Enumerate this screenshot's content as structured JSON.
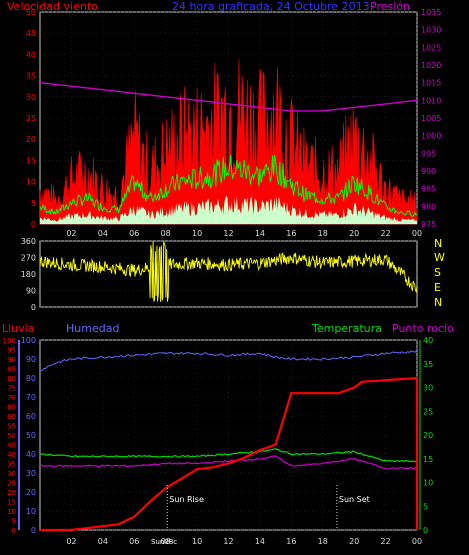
{
  "header": {
    "left_label": "Velocidad viento",
    "center_label": "24 hora graficada, 24 Octubre 2013",
    "right_label": "Presión"
  },
  "bottom_header": {
    "lluvia": "Lluvia",
    "humedad": "Humedad",
    "temperatura": "Temperatura",
    "punto_rocio": "Punto rocío"
  },
  "compass": [
    "N",
    "W",
    "S",
    "E",
    "N"
  ],
  "colors": {
    "background": "#000000",
    "axis": "#aaaaaa",
    "wind_speed": "#ff0000",
    "wind_avg": "#00ff00",
    "wind_low": "#ccffcc",
    "pressure": "#cc00cc",
    "direction": "#ffff00",
    "humidity": "#6666ff",
    "temperature": "#00dd00",
    "dew_point": "#cc00cc",
    "rain": "#ff0000",
    "center_title": "#3333ff"
  },
  "chart_data": [
    {
      "type": "line",
      "id": "wind_pressure",
      "x_tick_labels": [
        "02",
        "04",
        "06",
        "08",
        "10",
        "12",
        "14",
        "16",
        "18",
        "20",
        "22",
        "00"
      ],
      "left_axis": {
        "ticks": [
          0,
          5,
          10,
          15,
          20,
          25,
          30,
          35,
          40,
          45,
          50
        ],
        "ylim": [
          0,
          50
        ]
      },
      "right_axis": {
        "ticks": [
          975,
          980,
          985,
          990,
          995,
          1000,
          1005,
          1010,
          1015,
          1020,
          1025,
          1030,
          1035
        ],
        "ylim": [
          975,
          1035
        ]
      },
      "series": [
        {
          "name": "Velocidad viento",
          "x": [
            0,
            1,
            2,
            3,
            4,
            5,
            6,
            7,
            8,
            9,
            10,
            11,
            12,
            13,
            14,
            15,
            16,
            17,
            18,
            19,
            20,
            21,
            22,
            23,
            24
          ],
          "values": [
            12,
            8,
            15,
            18,
            12,
            10,
            30,
            18,
            25,
            30,
            32,
            35,
            40,
            38,
            34,
            40,
            28,
            20,
            18,
            18,
            30,
            22,
            12,
            8,
            7
          ]
        },
        {
          "name": "Presión",
          "x": [
            0,
            2,
            4,
            6,
            8,
            10,
            12,
            14,
            16,
            18,
            20,
            22,
            24
          ],
          "values": [
            1015,
            1014,
            1013,
            1012,
            1011,
            1010,
            1009,
            1008,
            1007,
            1007,
            1008,
            1009,
            1010
          ]
        }
      ]
    },
    {
      "type": "line",
      "id": "wind_direction",
      "left_axis": {
        "ticks": [
          0,
          90,
          180,
          270,
          360
        ],
        "ylim": [
          0,
          360
        ]
      },
      "series": [
        {
          "name": "Dirección",
          "x": [
            0,
            2,
            4,
            6,
            8,
            10,
            12,
            14,
            16,
            18,
            20,
            22,
            24
          ],
          "values": [
            250,
            230,
            220,
            200,
            230,
            240,
            230,
            240,
            270,
            240,
            250,
            260,
            100
          ]
        }
      ]
    },
    {
      "type": "line",
      "id": "rain_humidity_temp",
      "x_tick_labels": [
        "02",
        "04",
        "06",
        "08",
        "10",
        "12",
        "14",
        "16",
        "18",
        "20",
        "22",
        "00"
      ],
      "annotations": [
        {
          "label": "Sun Rise",
          "x": 8.1
        },
        {
          "label": "Sun Set",
          "x": 18.9
        },
        {
          "label": "Sun08c",
          "x": 7.9
        }
      ],
      "left_axis_rain": {
        "ticks": [
          0,
          5,
          10,
          15,
          20,
          25,
          30,
          35,
          40,
          45,
          50,
          55,
          60,
          65,
          70,
          75,
          80,
          85,
          90,
          95,
          100
        ],
        "ylim": [
          0,
          100
        ]
      },
      "left_axis_humidity": {
        "ticks": [
          0,
          10,
          20,
          30,
          40,
          50,
          60,
          70,
          80,
          90,
          100
        ],
        "ylim": [
          0,
          100
        ]
      },
      "right_axis": {
        "ticks": [
          0,
          5,
          10,
          15,
          20,
          25,
          30,
          35,
          40
        ],
        "ylim": [
          0,
          40
        ]
      },
      "series": [
        {
          "name": "Lluvia",
          "x": [
            0,
            2,
            4,
            5,
            6,
            7,
            8,
            9,
            10,
            11,
            12,
            13,
            14,
            15,
            16,
            17,
            18,
            19,
            20,
            20.5,
            24,
            24
          ],
          "values": [
            0,
            0,
            2,
            3,
            7,
            15,
            22,
            27,
            32,
            33,
            35,
            38,
            42,
            45,
            72,
            72,
            72,
            72,
            75,
            78,
            80,
            0
          ]
        },
        {
          "name": "Humedad",
          "x": [
            0,
            1,
            2,
            4,
            6,
            8,
            10,
            12,
            14,
            15,
            16,
            18,
            20,
            22,
            24
          ],
          "values": [
            84,
            88,
            90,
            91,
            92,
            93,
            93,
            92,
            93,
            91,
            90,
            90,
            91,
            93,
            94
          ]
        },
        {
          "name": "Temperatura",
          "x": [
            0,
            2,
            4,
            6,
            8,
            10,
            12,
            14,
            15,
            16,
            18,
            20,
            22,
            24
          ],
          "values": [
            16,
            15.5,
            15.5,
            15.5,
            15.5,
            15.5,
            16,
            16.5,
            17,
            16,
            16,
            16.5,
            14.5,
            14.5
          ]
        },
        {
          "name": "Punto rocío",
          "x": [
            0,
            2,
            4,
            6,
            8,
            10,
            12,
            14,
            15,
            16,
            18,
            20,
            22,
            24
          ],
          "values": [
            13.5,
            13.5,
            13.5,
            13.5,
            14,
            14,
            14.5,
            15,
            15.5,
            13.5,
            14,
            15,
            13,
            13
          ]
        }
      ]
    }
  ]
}
